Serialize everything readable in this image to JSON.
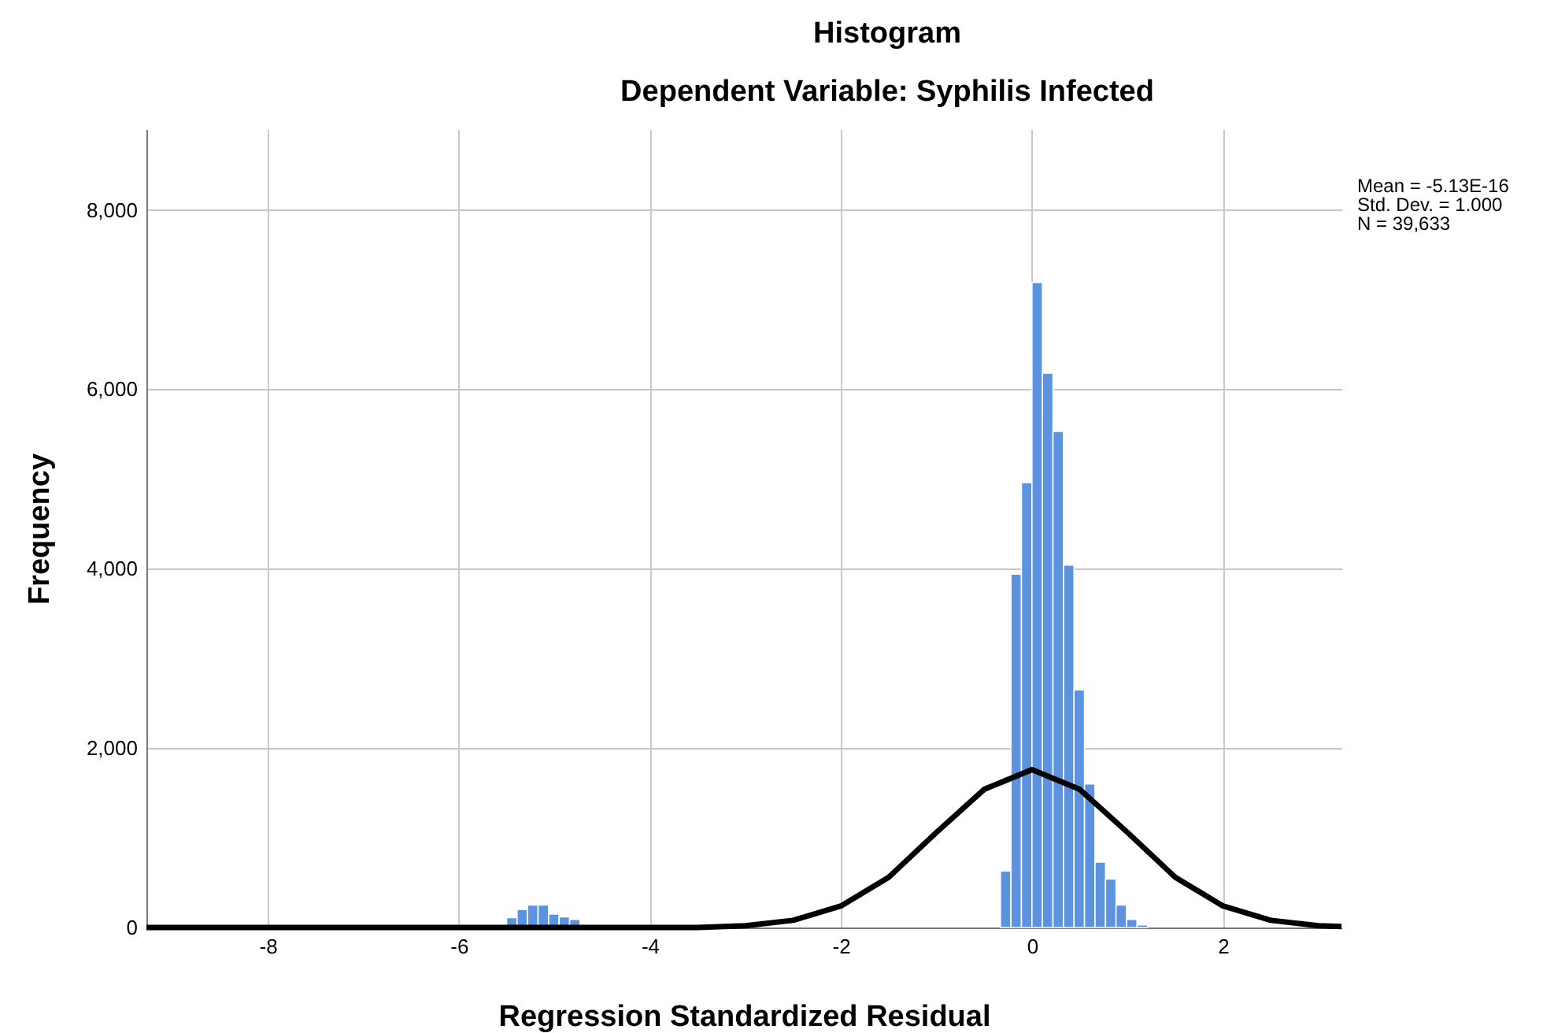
{
  "chart_data": {
    "type": "histogram",
    "title": "Histogram",
    "subtitle": "Dependent Variable: Syphilis Infected",
    "xlabel": "Regression Standardized Residual",
    "ylabel": "Frequency",
    "annotations": [
      "Mean = -5.13E-16",
      "Std. Dev. = 1.000",
      "N = 39,633"
    ],
    "bins": [
      -5.5,
      -5.39,
      -5.28,
      -5.17,
      -5.06,
      -4.95,
      -4.84,
      -4.73,
      -4.62,
      -4.51,
      -4.4,
      -4.29,
      -4.18,
      -4.07,
      -3.96,
      -3.85,
      -3.74,
      -3.63,
      -3.52,
      -3.41,
      -3.3,
      -3.19,
      -3.08,
      -2.97,
      -2.86,
      -2.75,
      -2.64,
      -2.53,
      -2.42,
      -2.31,
      -2.2,
      -2.09,
      -1.98,
      -1.87,
      -1.76,
      -1.65,
      -1.54,
      -1.43,
      -1.32,
      -1.21,
      -1.1,
      -0.99,
      -0.88,
      -0.77,
      -0.66,
      -0.55,
      -0.44,
      -0.33,
      -0.22,
      -0.11,
      0,
      0.11,
      0.22,
      0.33,
      0.44,
      0.55,
      0.66,
      0.77,
      0.88,
      0.99,
      1.1,
      1.21
    ],
    "values": [
      110,
      200,
      250,
      250,
      150,
      120,
      90,
      0,
      0,
      0,
      0,
      0,
      0,
      0,
      0,
      0,
      0,
      0,
      0,
      0,
      0,
      0,
      0,
      0,
      0,
      0,
      0,
      0,
      0,
      0,
      0,
      0,
      0,
      0,
      0,
      0,
      0,
      0,
      0,
      0,
      0,
      0,
      0,
      0,
      0,
      0,
      0,
      630,
      3940,
      4960,
      7190,
      6180,
      5530,
      4040,
      2650,
      1600,
      730,
      540,
      250,
      90,
      30
    ],
    "color": "#5b93e0",
    "series": [
      {
        "type": "line",
        "color": "#000000",
        "x": [
          -9.27,
          -4.5,
          -4,
          -3.5,
          -3,
          -2.5,
          -2,
          -1.5,
          -1,
          -0.5,
          0,
          0.5,
          1,
          1.5,
          2,
          2.5,
          3,
          3.24
        ],
        "values": [
          0,
          0,
          0,
          0,
          20,
          80,
          240,
          560,
          1060,
          1540,
          1760,
          1540,
          1060,
          560,
          240,
          80,
          20,
          10
        ]
      }
    ],
    "xlim": [
      -9.27,
      3.24
    ],
    "xticks": [
      -8,
      -6,
      -4,
      -2,
      0,
      2
    ],
    "ylim": [
      0,
      8900
    ],
    "yticks": [
      0,
      {
        "value": 2000,
        "label": "2,000"
      },
      {
        "value": 4000,
        "label": "4,000"
      },
      {
        "value": 6000,
        "label": "6,000"
      },
      {
        "value": 8000,
        "label": "8,000"
      }
    ],
    "grid": true
  }
}
